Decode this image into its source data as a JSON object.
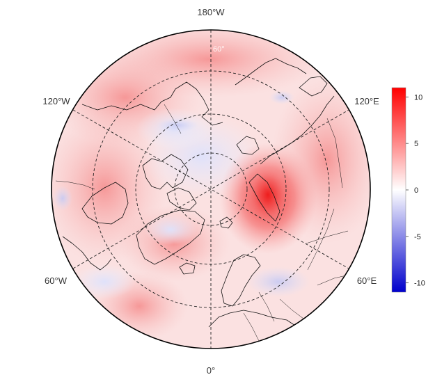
{
  "map": {
    "projection": "north-polar-stereographic",
    "longitude_labels": {
      "top": "180°W",
      "upper_left": "120°W",
      "upper_right": "120°E",
      "lower_left": "60°W",
      "lower_right": "60°E",
      "bottom": "0°"
    },
    "latitude_label": "60°",
    "graticule": "dashed",
    "coastlines": "black",
    "background_color": "#fbe3e3"
  },
  "colorbar": {
    "ticks": [
      "10",
      "5",
      "0",
      "-5",
      "-10"
    ],
    "min": -11,
    "max": 11,
    "colors": {
      "max": "#ff0000",
      "mid": "#ffffff",
      "min": "#0000cc"
    }
  }
}
